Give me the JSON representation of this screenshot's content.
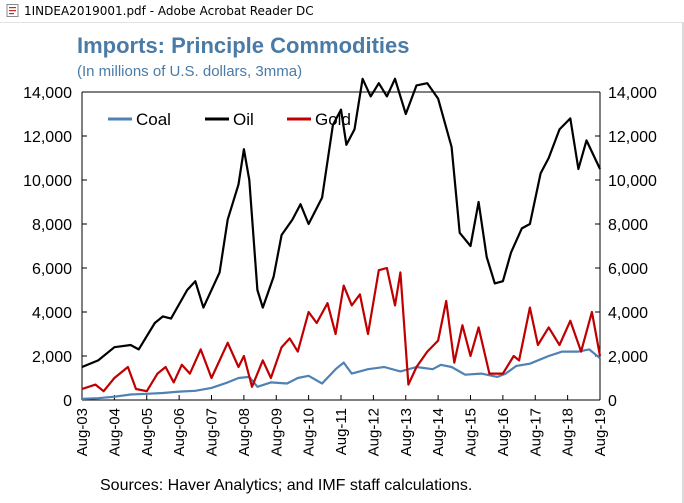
{
  "window": {
    "title": "1INDEA2019001.pdf - Adobe Acrobat Reader DC"
  },
  "colors": {
    "coal": "#4f81b3",
    "oil": "#000000",
    "gold": "#c00000",
    "title": "#4a7ba6"
  },
  "chart_data": {
    "type": "line",
    "title": "Imports: Principle Commodities",
    "subtitle": "(In millions of U.S. dollars, 3mma)",
    "source": "Sources: Haver Analytics; and IMF staff calculations.",
    "ylim": [
      0,
      14000
    ],
    "yticks": [
      0,
      2000,
      4000,
      6000,
      8000,
      10000,
      12000,
      14000
    ],
    "ytick_labels": [
      "0",
      "2,000",
      "4,000",
      "6,000",
      "8,000",
      "10,000",
      "12,000",
      "14,000"
    ],
    "xticks": [
      "Aug-03",
      "Aug-04",
      "Aug-05",
      "Aug-06",
      "Aug-07",
      "Aug-08",
      "Aug-09",
      "Aug-10",
      "Aug-11",
      "Aug-12",
      "Aug-13",
      "Aug-14",
      "Aug-15",
      "Aug-16",
      "Aug-17",
      "Aug-18",
      "Aug-19"
    ],
    "grid": false,
    "legend_position": "top-left",
    "x_start": "Aug-03",
    "x_end": "Aug-19",
    "series": [
      {
        "name": "Coal",
        "color": "#4f81b3",
        "points": [
          [
            "2003-08",
            50
          ],
          [
            "2004-02",
            80
          ],
          [
            "2004-08",
            150
          ],
          [
            "2005-02",
            250
          ],
          [
            "2005-08",
            280
          ],
          [
            "2006-02",
            320
          ],
          [
            "2006-08",
            380
          ],
          [
            "2007-02",
            420
          ],
          [
            "2007-08",
            550
          ],
          [
            "2008-02",
            800
          ],
          [
            "2008-06",
            1000
          ],
          [
            "2008-10",
            1050
          ],
          [
            "2009-01",
            600
          ],
          [
            "2009-06",
            800
          ],
          [
            "2009-12",
            750
          ],
          [
            "2010-04",
            1000
          ],
          [
            "2010-08",
            1100
          ],
          [
            "2011-01",
            750
          ],
          [
            "2011-06",
            1400
          ],
          [
            "2011-09",
            1700
          ],
          [
            "2011-12",
            1200
          ],
          [
            "2012-06",
            1400
          ],
          [
            "2012-12",
            1500
          ],
          [
            "2013-06",
            1300
          ],
          [
            "2013-12",
            1500
          ],
          [
            "2014-06",
            1400
          ],
          [
            "2014-09",
            1600
          ],
          [
            "2015-01",
            1500
          ],
          [
            "2015-06",
            1150
          ],
          [
            "2015-12",
            1200
          ],
          [
            "2016-06",
            1050
          ],
          [
            "2016-09",
            1200
          ],
          [
            "2017-01",
            1550
          ],
          [
            "2017-06",
            1650
          ],
          [
            "2018-01",
            2000
          ],
          [
            "2018-06",
            2200
          ],
          [
            "2018-12",
            2200
          ],
          [
            "2019-04",
            2300
          ],
          [
            "2019-08",
            1900
          ]
        ]
      },
      {
        "name": "Oil",
        "color": "#000000",
        "points": [
          [
            "2003-08",
            1500
          ],
          [
            "2004-02",
            1800
          ],
          [
            "2004-08",
            2400
          ],
          [
            "2005-02",
            2500
          ],
          [
            "2005-05",
            2300
          ],
          [
            "2005-11",
            3500
          ],
          [
            "2006-02",
            3800
          ],
          [
            "2006-05",
            3700
          ],
          [
            "2006-11",
            5000
          ],
          [
            "2007-02",
            5400
          ],
          [
            "2007-05",
            4200
          ],
          [
            "2007-11",
            5800
          ],
          [
            "2008-02",
            8200
          ],
          [
            "2008-06",
            9800
          ],
          [
            "2008-08",
            11400
          ],
          [
            "2008-10",
            10000
          ],
          [
            "2009-01",
            5000
          ],
          [
            "2009-03",
            4200
          ],
          [
            "2009-07",
            5600
          ],
          [
            "2009-10",
            7500
          ],
          [
            "2010-02",
            8200
          ],
          [
            "2010-05",
            8900
          ],
          [
            "2010-08",
            8000
          ],
          [
            "2011-01",
            9200
          ],
          [
            "2011-05",
            12500
          ],
          [
            "2011-08",
            13200
          ],
          [
            "2011-10",
            11600
          ],
          [
            "2012-01",
            12300
          ],
          [
            "2012-04",
            14600
          ],
          [
            "2012-07",
            13800
          ],
          [
            "2012-10",
            14400
          ],
          [
            "2013-01",
            13800
          ],
          [
            "2013-04",
            14600
          ],
          [
            "2013-08",
            13000
          ],
          [
            "2013-12",
            14300
          ],
          [
            "2014-04",
            14400
          ],
          [
            "2014-08",
            13700
          ],
          [
            "2015-01",
            11500
          ],
          [
            "2015-04",
            7600
          ],
          [
            "2015-08",
            7000
          ],
          [
            "2015-11",
            9000
          ],
          [
            "2016-02",
            6500
          ],
          [
            "2016-05",
            5300
          ],
          [
            "2016-08",
            5400
          ],
          [
            "2016-11",
            6700
          ],
          [
            "2017-03",
            7800
          ],
          [
            "2017-06",
            8000
          ],
          [
            "2017-10",
            10300
          ],
          [
            "2018-01",
            11000
          ],
          [
            "2018-05",
            12300
          ],
          [
            "2018-09",
            12800
          ],
          [
            "2018-12",
            10500
          ],
          [
            "2019-03",
            11800
          ],
          [
            "2019-08",
            10500
          ]
        ]
      },
      {
        "name": "Gold",
        "color": "#c00000",
        "points": [
          [
            "2003-08",
            500
          ],
          [
            "2004-01",
            700
          ],
          [
            "2004-04",
            400
          ],
          [
            "2004-08",
            1000
          ],
          [
            "2005-01",
            1500
          ],
          [
            "2005-04",
            500
          ],
          [
            "2005-08",
            400
          ],
          [
            "2005-12",
            1200
          ],
          [
            "2006-03",
            1500
          ],
          [
            "2006-06",
            800
          ],
          [
            "2006-09",
            1600
          ],
          [
            "2006-12",
            1200
          ],
          [
            "2007-04",
            2300
          ],
          [
            "2007-08",
            1000
          ],
          [
            "2008-02",
            2600
          ],
          [
            "2008-06",
            1500
          ],
          [
            "2008-08",
            2000
          ],
          [
            "2008-11",
            600
          ],
          [
            "2009-03",
            1800
          ],
          [
            "2009-06",
            1000
          ],
          [
            "2009-10",
            2400
          ],
          [
            "2010-01",
            2800
          ],
          [
            "2010-04",
            2200
          ],
          [
            "2010-08",
            4000
          ],
          [
            "2010-11",
            3500
          ],
          [
            "2011-03",
            4400
          ],
          [
            "2011-06",
            3000
          ],
          [
            "2011-09",
            5200
          ],
          [
            "2011-12",
            4300
          ],
          [
            "2012-03",
            4800
          ],
          [
            "2012-06",
            3000
          ],
          [
            "2012-10",
            5900
          ],
          [
            "2013-01",
            6000
          ],
          [
            "2013-04",
            4300
          ],
          [
            "2013-06",
            5800
          ],
          [
            "2013-09",
            700
          ],
          [
            "2013-12",
            1500
          ],
          [
            "2014-04",
            2200
          ],
          [
            "2014-08",
            2700
          ],
          [
            "2014-11",
            4500
          ],
          [
            "2015-02",
            1700
          ],
          [
            "2015-05",
            3400
          ],
          [
            "2015-08",
            2000
          ],
          [
            "2015-11",
            3300
          ],
          [
            "2016-03",
            1200
          ],
          [
            "2016-08",
            1200
          ],
          [
            "2016-12",
            2000
          ],
          [
            "2017-02",
            1800
          ],
          [
            "2017-06",
            4200
          ],
          [
            "2017-09",
            2500
          ],
          [
            "2018-01",
            3300
          ],
          [
            "2018-05",
            2500
          ],
          [
            "2018-09",
            3600
          ],
          [
            "2019-01",
            2200
          ],
          [
            "2019-05",
            4000
          ],
          [
            "2019-08",
            2000
          ]
        ]
      }
    ]
  }
}
